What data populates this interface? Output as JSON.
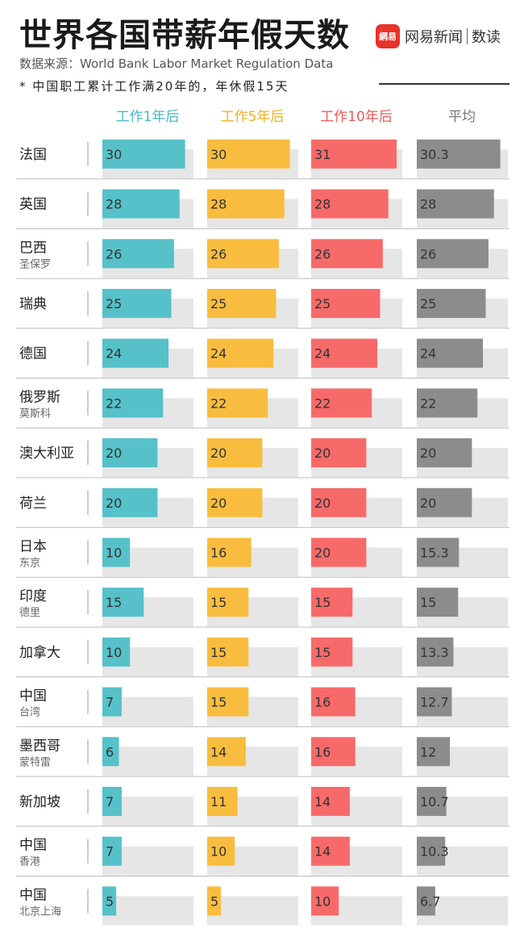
{
  "header": {
    "title": "世界各国带薪年假天数",
    "source": "数据来源：World Bank Labor Market Regulation Data",
    "note": "* 中国职工累计工作满20年的，年休假15天",
    "brand_logo_text": "網易",
    "brand_name": "网易新闻",
    "brand_sub": "数读"
  },
  "colors": {
    "teal": "#56c1c9",
    "yellow": "#f8bd3f",
    "red": "#f76a6a",
    "gray": "#8c8c8c",
    "track": "#e6e6e6",
    "divider": "#bdbdbd"
  },
  "chart_data": {
    "type": "bar",
    "title": "世界各国带薪年假天数",
    "xlim": [
      0,
      33
    ],
    "series": [
      {
        "name": "工作1年后",
        "color": "#56c1c9",
        "values": [
          30,
          28,
          26,
          25,
          24,
          22,
          20,
          20,
          10,
          15,
          10,
          7,
          6,
          7,
          7,
          5
        ]
      },
      {
        "name": "工作5年后",
        "color": "#f8bd3f",
        "values": [
          30,
          28,
          26,
          25,
          24,
          22,
          20,
          20,
          16,
          15,
          15,
          15,
          14,
          11,
          10,
          5
        ]
      },
      {
        "name": "工作10年后",
        "color": "#f76a6a",
        "values": [
          31,
          28,
          26,
          25,
          24,
          22,
          20,
          20,
          20,
          15,
          15,
          16,
          16,
          14,
          14,
          10
        ]
      },
      {
        "name": "平均",
        "color": "#8c8c8c",
        "values": [
          30.3,
          28,
          26,
          25,
          24,
          22,
          20,
          20,
          15.3,
          15,
          13.3,
          12.7,
          12,
          10.7,
          10.3,
          6.7
        ]
      }
    ],
    "labels": [
      [
        "30",
        "30",
        "31",
        "30.3"
      ],
      [
        "28",
        "28",
        "28",
        "28"
      ],
      [
        "26",
        "26",
        "26",
        "26"
      ],
      [
        "25",
        "25",
        "25",
        "25"
      ],
      [
        "24",
        "24",
        "24",
        "24"
      ],
      [
        "22",
        "22",
        "22",
        "22"
      ],
      [
        "20",
        "20",
        "20",
        "20"
      ],
      [
        "20",
        "20",
        "20",
        "20"
      ],
      [
        "10",
        "16",
        "20",
        "15.3"
      ],
      [
        "15",
        "15",
        "15",
        "15"
      ],
      [
        "10",
        "15",
        "15",
        "13.3"
      ],
      [
        "7",
        "15",
        "16",
        "12.7"
      ],
      [
        "6",
        "14",
        "16",
        "12"
      ],
      [
        "7",
        "11",
        "14",
        "10.7"
      ],
      [
        "7",
        "10",
        "14",
        "10.3"
      ],
      [
        "5",
        "5",
        "10",
        "6.7"
      ]
    ],
    "categories": [
      {
        "name": "法国",
        "sub": ""
      },
      {
        "name": "英国",
        "sub": ""
      },
      {
        "name": "巴西",
        "sub": "圣保罗"
      },
      {
        "name": "瑞典",
        "sub": ""
      },
      {
        "name": "德国",
        "sub": ""
      },
      {
        "name": "俄罗斯",
        "sub": "莫斯科"
      },
      {
        "name": "澳大利亚",
        "sub": ""
      },
      {
        "name": "荷兰",
        "sub": ""
      },
      {
        "name": "日本",
        "sub": "东京"
      },
      {
        "name": "印度",
        "sub": "德里"
      },
      {
        "name": "加拿大",
        "sub": ""
      },
      {
        "name": "中国",
        "sub": "台湾"
      },
      {
        "name": "墨西哥",
        "sub": "蒙特雷"
      },
      {
        "name": "新加坡",
        "sub": ""
      },
      {
        "name": "中国",
        "sub": "香港"
      },
      {
        "name": "中国",
        "sub": "北京上海"
      }
    ]
  }
}
